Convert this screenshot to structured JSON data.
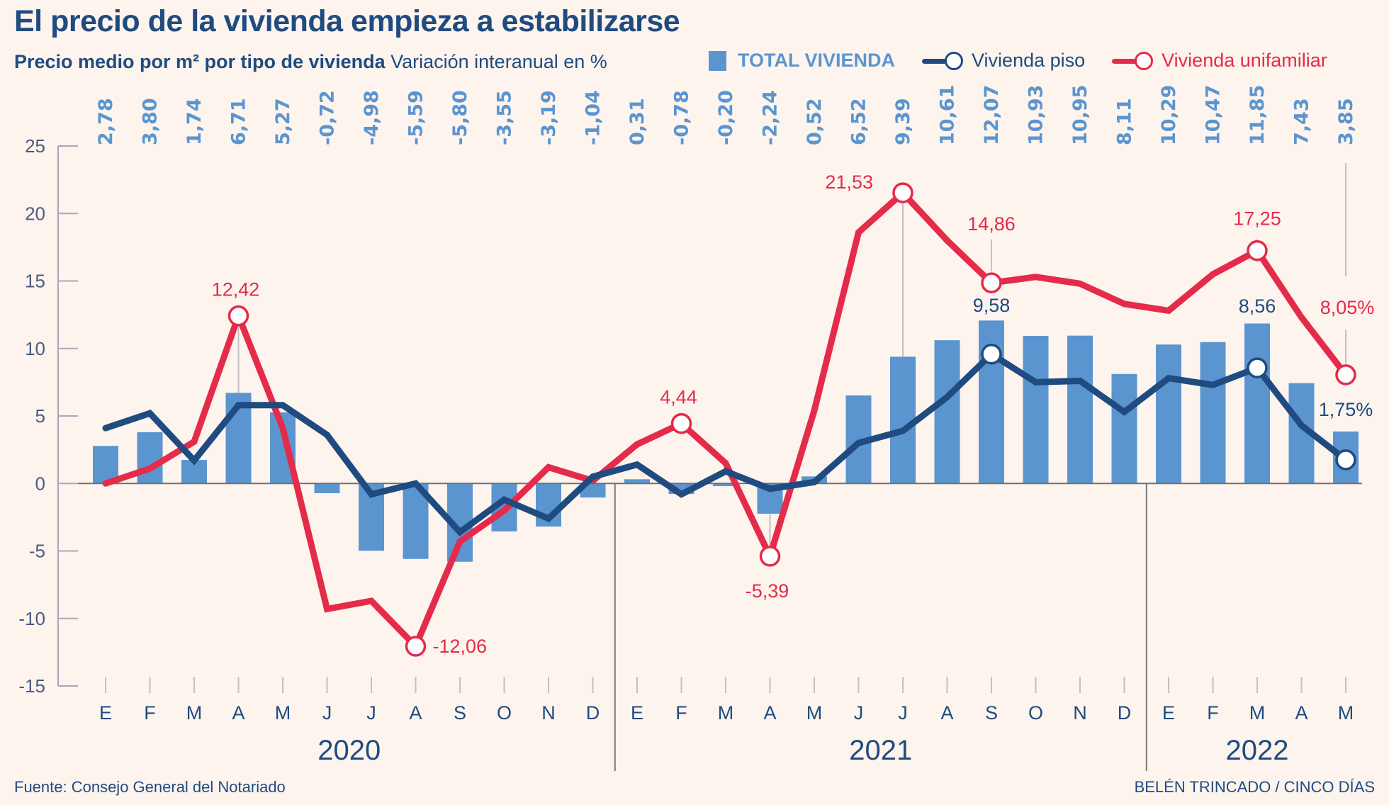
{
  "header": {
    "title": "El precio de la vivienda empieza a estabilizarse",
    "subtitle_bold": "Precio medio por m² por tipo de vivienda",
    "subtitle_regular": "Variación interanual en %"
  },
  "legend": {
    "total": "TOTAL VIVIENDA",
    "piso": "Vivienda piso",
    "unifamiliar": "Vivienda unifamiliar"
  },
  "colors": {
    "total": "#5b95d0",
    "piso": "#1f4b80",
    "unifamiliar": "#e52b4a",
    "axis": "#4a5a80",
    "background": "#fdf4ee"
  },
  "footer": {
    "source": "Fuente: Consejo General del Notariado",
    "credit": "BELÉN TRINCADO / CINCO DÍAS"
  },
  "chart_data": {
    "type": "bar+line",
    "title": "El precio de la vivienda empieza a estabilizarse",
    "subtitle": "Precio medio por m² por tipo de vivienda. Variación interanual en %",
    "xlabel": "",
    "ylabel": "",
    "ylim": [
      -15,
      25
    ],
    "yticks": [
      25,
      20,
      15,
      10,
      5,
      0,
      -5,
      -10,
      -15
    ],
    "months": [
      "E",
      "F",
      "M",
      "A",
      "M",
      "J",
      "J",
      "A",
      "S",
      "O",
      "N",
      "D",
      "E",
      "F",
      "M",
      "A",
      "M",
      "J",
      "J",
      "A",
      "S",
      "O",
      "N",
      "D",
      "E",
      "F",
      "M",
      "A",
      "M"
    ],
    "years": [
      {
        "label": "2020",
        "start": 0,
        "end": 11
      },
      {
        "label": "2021",
        "start": 12,
        "end": 23
      },
      {
        "label": "2022",
        "start": 24,
        "end": 28
      }
    ],
    "legend_position": "top-right",
    "series": [
      {
        "name": "TOTAL VIVIENDA",
        "kind": "bar",
        "labels": [
          "2,78",
          "3,80",
          "1,74",
          "6,71",
          "5,27",
          "-0,72",
          "-4,98",
          "-5,59",
          "-5,80",
          "-3,55",
          "-3,19",
          "-1,04",
          "0,31",
          "-0,78",
          "-0,20",
          "-2,24",
          "0,52",
          "6,52",
          "9,39",
          "10,61",
          "12,07",
          "10,93",
          "10,95",
          "8,11",
          "10,29",
          "10,47",
          "11,85",
          "7,43",
          "3,85"
        ],
        "values": [
          2.78,
          3.8,
          1.74,
          6.71,
          5.27,
          -0.72,
          -4.98,
          -5.59,
          -5.8,
          -3.55,
          -3.19,
          -1.04,
          0.31,
          -0.78,
          -0.2,
          -2.24,
          0.52,
          6.52,
          9.39,
          10.61,
          12.07,
          10.93,
          10.95,
          8.11,
          10.29,
          10.47,
          11.85,
          7.43,
          3.85
        ]
      },
      {
        "name": "Vivienda piso",
        "kind": "line",
        "values": [
          4.1,
          5.2,
          1.7,
          5.8,
          5.8,
          3.6,
          -0.8,
          0.0,
          -3.6,
          -1.2,
          -2.6,
          0.5,
          1.4,
          -0.8,
          0.9,
          -0.4,
          0.1,
          3.0,
          3.9,
          6.4,
          9.58,
          7.5,
          7.6,
          5.3,
          7.8,
          7.3,
          8.56,
          4.3,
          1.75
        ],
        "annotations": [
          {
            "index": 20,
            "text": "9,58"
          },
          {
            "index": 26,
            "text": "8,56"
          },
          {
            "index": 28,
            "text": "1,75%"
          }
        ]
      },
      {
        "name": "Vivienda unifamiliar",
        "kind": "line",
        "values": [
          0.0,
          1.1,
          3.1,
          12.42,
          4.1,
          -9.3,
          -8.7,
          -12.06,
          -4.3,
          -2.0,
          1.2,
          0.2,
          2.9,
          4.44,
          1.5,
          -5.39,
          5.4,
          18.6,
          21.53,
          18.0,
          14.86,
          15.3,
          14.8,
          13.3,
          12.8,
          15.5,
          17.25,
          12.3,
          8.05
        ],
        "annotations": [
          {
            "index": 3,
            "text": "12,42"
          },
          {
            "index": 7,
            "text": "-12,06"
          },
          {
            "index": 13,
            "text": "4,44"
          },
          {
            "index": 15,
            "text": "-5,39"
          },
          {
            "index": 18,
            "text": "21,53"
          },
          {
            "index": 20,
            "text": "14,86"
          },
          {
            "index": 26,
            "text": "17,25"
          },
          {
            "index": 28,
            "text": "8,05%"
          }
        ]
      }
    ]
  }
}
